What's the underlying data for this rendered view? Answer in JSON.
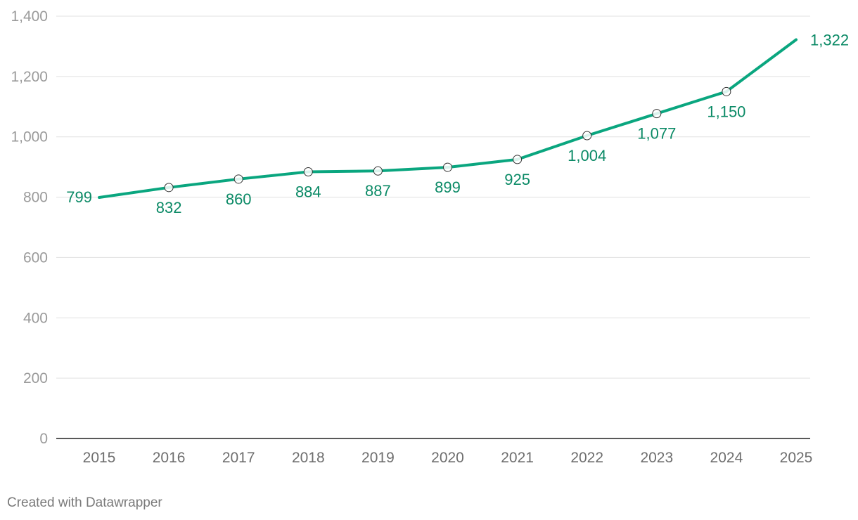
{
  "chart_data": {
    "type": "line",
    "title": "",
    "xlabel": "",
    "ylabel": "",
    "x": [
      "2015",
      "2016",
      "2017",
      "2018",
      "2019",
      "2020",
      "2021",
      "2022",
      "2023",
      "2024",
      "2025"
    ],
    "series": [
      {
        "values": [
          799,
          832,
          860,
          884,
          887,
          899,
          925,
          1004,
          1077,
          1150,
          1322
        ]
      }
    ],
    "data_labels": [
      "799",
      "832",
      "860",
      "884",
      "887",
      "899",
      "925",
      "1,004",
      "1,077",
      "1,150",
      "1,322"
    ],
    "yticks": [
      0,
      200,
      400,
      600,
      800,
      1000,
      1200,
      1400
    ],
    "ytick_labels": [
      "0",
      "200",
      "400",
      "600",
      "800",
      "1,000",
      "1,200",
      "1,400"
    ],
    "ylim": [
      0,
      1400
    ],
    "grid": true,
    "line_color": "#0aa67f",
    "label_color": "#0b8a66",
    "axis_text_color": "#9a9a9a"
  },
  "footer": {
    "credit": "Created with Datawrapper"
  }
}
